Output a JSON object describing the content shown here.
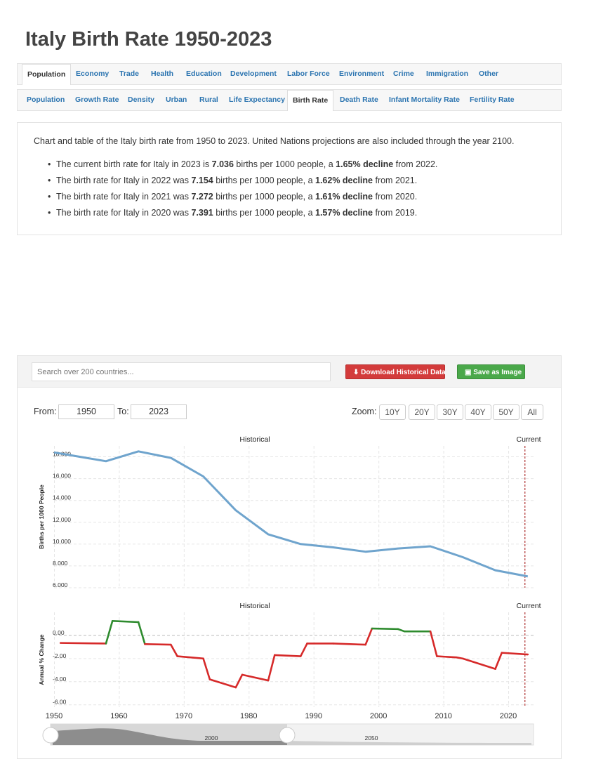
{
  "page_title": "Italy Birth Rate 1950-2023",
  "nav_primary": [
    {
      "label": "Population",
      "active": true
    },
    {
      "label": "Economy"
    },
    {
      "label": "Trade"
    },
    {
      "label": "Health"
    },
    {
      "label": "Education"
    },
    {
      "label": "Development"
    },
    {
      "label": "Labor Force"
    },
    {
      "label": "Environment"
    },
    {
      "label": "Crime"
    },
    {
      "label": "Immigration"
    },
    {
      "label": "Other"
    }
  ],
  "nav_secondary": [
    {
      "label": "Population"
    },
    {
      "label": "Growth Rate"
    },
    {
      "label": "Density"
    },
    {
      "label": "Urban"
    },
    {
      "label": "Rural"
    },
    {
      "label": "Life Expectancy"
    },
    {
      "label": "Birth Rate",
      "active": true
    },
    {
      "label": "Death Rate"
    },
    {
      "label": "Infant Mortality Rate"
    },
    {
      "label": "Fertility Rate"
    }
  ],
  "intro": "Chart and table of the Italy birth rate from 1950 to 2023. United Nations projections are also included through the year 2100.",
  "bullets": [
    {
      "pre": "The current birth rate for Italy in 2023 is ",
      "value": "7.036",
      "mid": " births per 1000 people, a ",
      "change": "1.65% decline",
      "post": " from 2022."
    },
    {
      "pre": "The birth rate for Italy in 2022 was ",
      "value": "7.154",
      "mid": " births per 1000 people, a ",
      "change": "1.62% decline",
      "post": " from 2021."
    },
    {
      "pre": "The birth rate for Italy in 2021 was ",
      "value": "7.272",
      "mid": " births per 1000 people, a ",
      "change": "1.61% decline",
      "post": " from 2020."
    },
    {
      "pre": "The birth rate for Italy in 2020 was ",
      "value": "7.391",
      "mid": " births per 1000 people, a ",
      "change": "1.57% decline",
      "post": " from 2019."
    }
  ],
  "toolbar": {
    "search_placeholder": "Search over 200 countries...",
    "download_label": "Download Historical Data",
    "save_label": "Save as Image"
  },
  "range": {
    "from_label": "From:",
    "from_value": "1950",
    "to_label": "To:",
    "to_value": "2023"
  },
  "zoom": {
    "label": "Zoom:",
    "options": [
      "10Y",
      "20Y",
      "30Y",
      "40Y",
      "50Y",
      "All"
    ]
  },
  "colors": {
    "line": "#6fa4cd",
    "up": "#2e8b2e",
    "down": "#d62a2a",
    "current": "#b03030",
    "link": "#2b74b0"
  },
  "chart_data": [
    {
      "type": "line",
      "top_label_left": "Historical",
      "top_label_right": "Current",
      "ylabel": "Births per 1000 People",
      "ylim": [
        6,
        19
      ],
      "yticks": [
        "6.000",
        "8.000",
        "10.000",
        "12.000",
        "14.000",
        "16.000",
        "18.000"
      ],
      "x": [
        1950,
        1958,
        1963,
        1968,
        1973,
        1978,
        1983,
        1988,
        1993,
        1998,
        2003,
        2008,
        2013,
        2018,
        2023
      ],
      "values": [
        18.4,
        17.6,
        18.5,
        17.9,
        16.2,
        13.1,
        10.9,
        10.0,
        9.7,
        9.3,
        9.6,
        9.8,
        8.8,
        7.6,
        7.036
      ]
    },
    {
      "type": "line",
      "top_label_left": "Historical",
      "top_label_right": "Current",
      "ylabel": "Annual % Change",
      "ylim": [
        -6.2,
        2.0
      ],
      "yticks": [
        "0.00",
        "-2.00",
        "-4.00",
        "-6.00"
      ],
      "xticks": [
        "1950",
        "1960",
        "1970",
        "1980",
        "1990",
        "2000",
        "2010",
        "2020"
      ],
      "x": [
        1951,
        1958,
        1959,
        1963,
        1964,
        1968,
        1969,
        1973,
        1974,
        1978,
        1979,
        1983,
        1984,
        1988,
        1989,
        1993,
        1998,
        1999,
        2003,
        2004,
        2008,
        2009,
        2012,
        2013,
        2018,
        2019,
        2023
      ],
      "values": [
        -0.65,
        -0.7,
        1.25,
        1.15,
        -0.75,
        -0.8,
        -1.8,
        -2.0,
        -3.8,
        -4.5,
        -3.4,
        -3.9,
        -1.7,
        -1.8,
        -0.7,
        -0.7,
        -0.8,
        0.6,
        0.55,
        0.35,
        0.35,
        -1.8,
        -1.9,
        -2.0,
        -2.9,
        -1.5,
        -1.65
      ]
    }
  ],
  "navigator": {
    "tick_labels": [
      "2000",
      "2050"
    ]
  }
}
